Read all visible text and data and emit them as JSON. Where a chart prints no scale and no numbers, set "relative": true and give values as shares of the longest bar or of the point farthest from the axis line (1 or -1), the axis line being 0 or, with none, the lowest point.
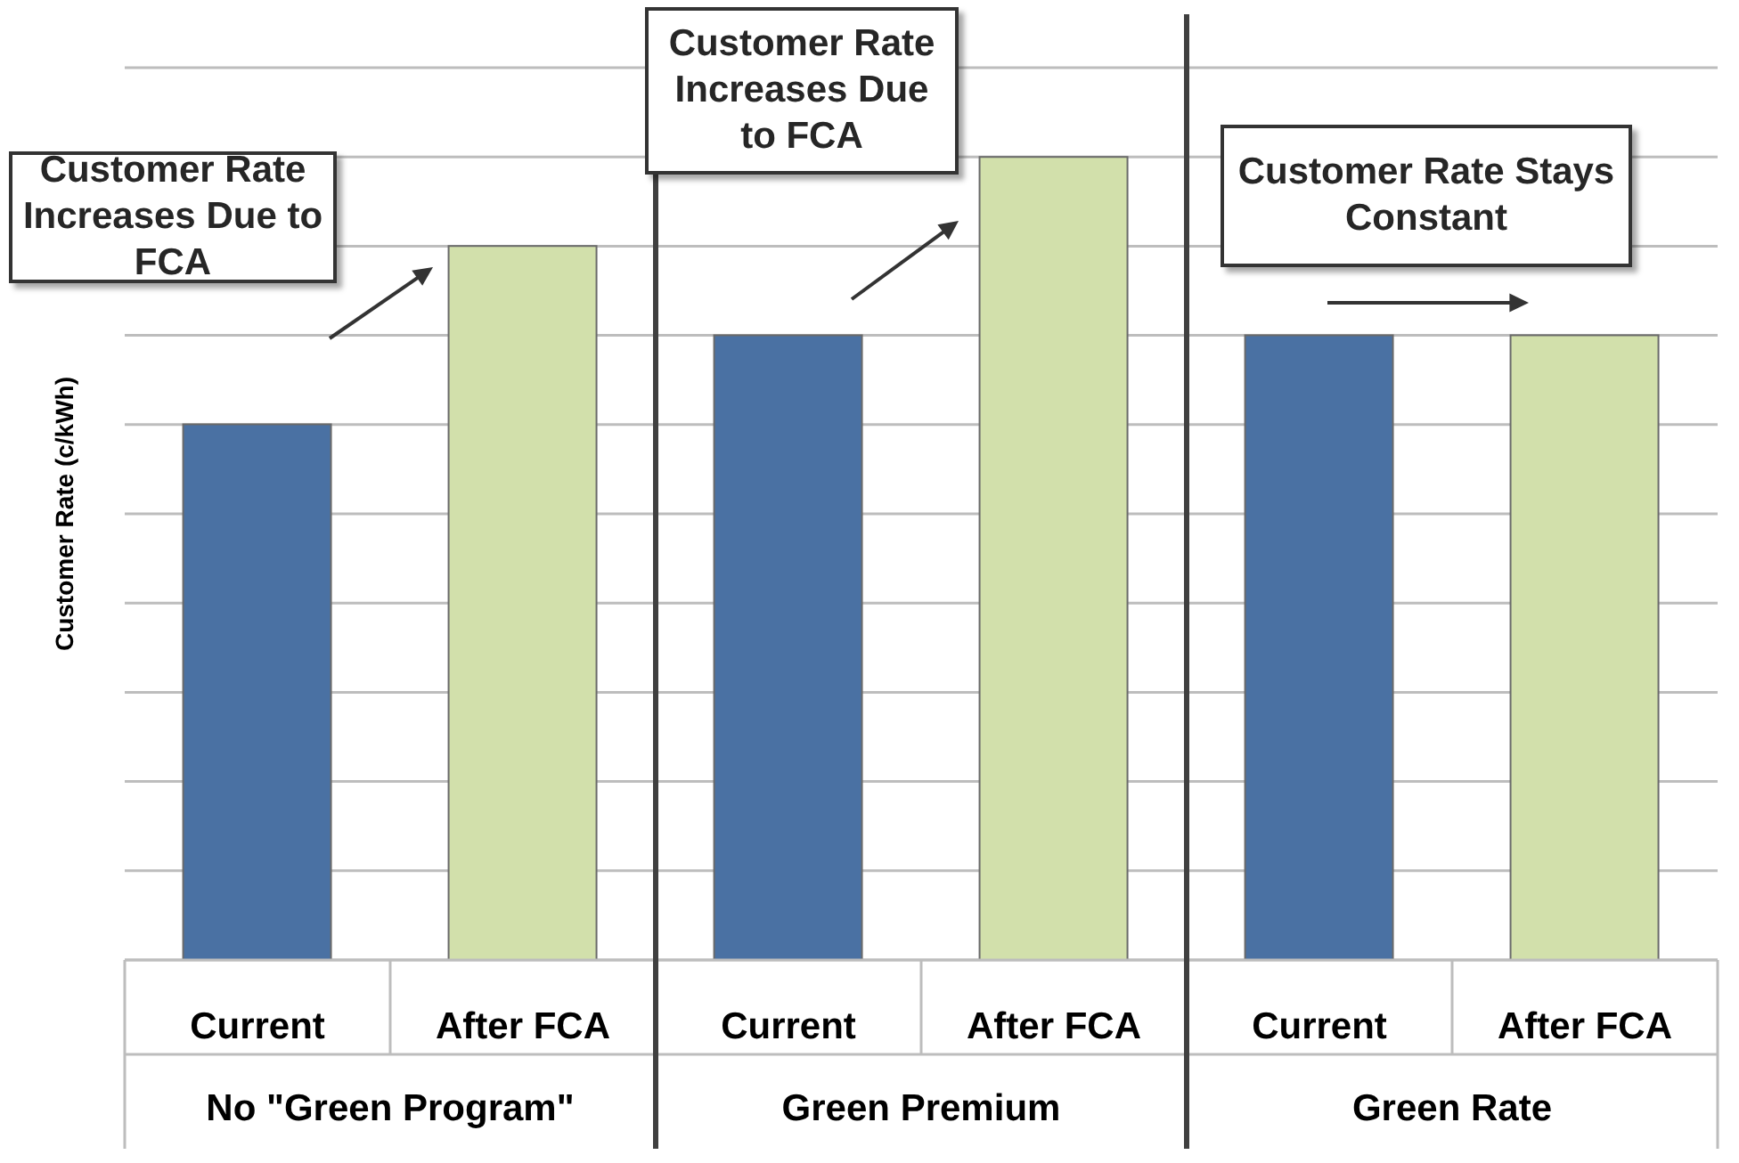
{
  "chart_data": {
    "type": "bar",
    "relative": true,
    "ylabel": "Customer Rate (c/kWh)",
    "grid": "y",
    "categories": [
      "Current",
      "After FCA",
      "Current",
      "After FCA",
      "Current",
      "After FCA"
    ],
    "values": [
      0.667,
      0.889,
      0.778,
      1,
      0.778,
      0.778
    ],
    "colors": [
      "#4a71a3",
      "#d2e0ab",
      "#4a71a3",
      "#d2e0ab",
      "#4a71a3",
      "#d2e0ab"
    ],
    "annotations": [
      "No \"Green Program\"",
      "Green Premium",
      "Green Rate",
      "Customer Rate Increases Due to FCA",
      "Customer Rate Increases Due to FCA",
      "Customer Rate Stays Constant"
    ]
  }
}
